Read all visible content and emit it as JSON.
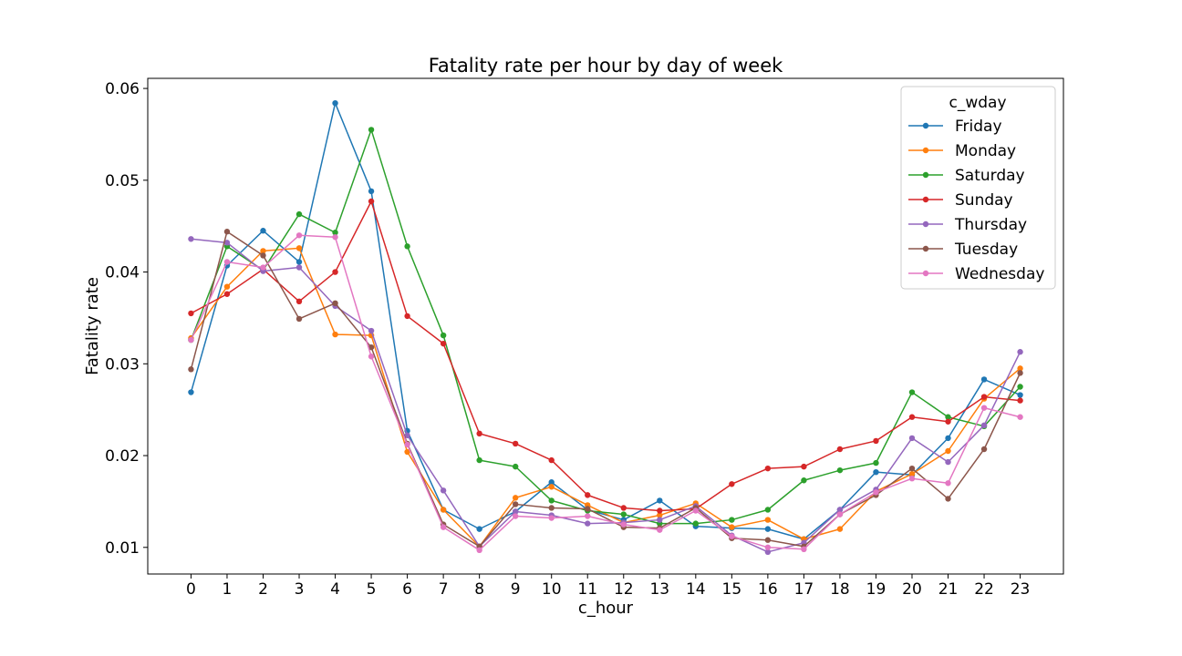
{
  "chart_data": {
    "type": "line",
    "title": "Fatality rate per hour by day of week",
    "xlabel": "c_hour",
    "ylabel": "Fatality rate",
    "x": [
      0,
      1,
      2,
      3,
      4,
      5,
      6,
      7,
      8,
      9,
      10,
      11,
      12,
      13,
      14,
      15,
      16,
      17,
      18,
      19,
      20,
      21,
      22,
      23
    ],
    "xlim": [
      -1.2,
      24.2
    ],
    "ylim": [
      0.0071,
      0.0611
    ],
    "yticks": [
      0.01,
      0.02,
      0.03,
      0.04,
      0.05,
      0.06
    ],
    "ytick_labels": [
      "0.01",
      "0.02",
      "0.03",
      "0.04",
      "0.05",
      "0.06"
    ],
    "xtick_labels": [
      "0",
      "1",
      "2",
      "3",
      "4",
      "5",
      "6",
      "7",
      "8",
      "9",
      "10",
      "11",
      "12",
      "13",
      "14",
      "15",
      "16",
      "17",
      "18",
      "19",
      "20",
      "21",
      "22",
      "23"
    ],
    "grid": false,
    "legend": {
      "title": "c_wday",
      "position": "top-right"
    },
    "series": [
      {
        "name": "Friday",
        "color": "#1f77b4",
        "values": [
          0.0269,
          0.0407,
          0.0445,
          0.0411,
          0.0584,
          0.0488,
          0.0227,
          0.0141,
          0.012,
          0.0139,
          0.0171,
          0.0141,
          0.013,
          0.0151,
          0.0123,
          0.0121,
          0.012,
          0.0109,
          0.0141,
          0.0182,
          0.0179,
          0.0219,
          0.0283,
          0.0266
        ]
      },
      {
        "name": "Monday",
        "color": "#ff7f0e",
        "values": [
          0.0328,
          0.0384,
          0.0423,
          0.0426,
          0.0332,
          0.0331,
          0.0204,
          0.0141,
          0.0101,
          0.0154,
          0.0166,
          0.0146,
          0.0127,
          0.0135,
          0.0148,
          0.0122,
          0.013,
          0.0109,
          0.012,
          0.0161,
          0.018,
          0.0205,
          0.0262,
          0.0295
        ]
      },
      {
        "name": "Saturday",
        "color": "#2ca02c",
        "values": [
          0.0326,
          0.0428,
          0.0402,
          0.0463,
          0.0443,
          0.0555,
          0.0428,
          0.0331,
          0.0195,
          0.0188,
          0.0151,
          0.014,
          0.0136,
          0.0126,
          0.0126,
          0.013,
          0.0141,
          0.0173,
          0.0184,
          0.0192,
          0.0269,
          0.0242,
          0.0232,
          0.0275
        ]
      },
      {
        "name": "Sunday",
        "color": "#d62728",
        "values": [
          0.0355,
          0.0376,
          0.0403,
          0.0368,
          0.04,
          0.0477,
          0.0352,
          0.0322,
          0.0224,
          0.0213,
          0.0195,
          0.0157,
          0.0143,
          0.014,
          0.0142,
          0.0169,
          0.0186,
          0.0188,
          0.0207,
          0.0216,
          0.0242,
          0.0237,
          0.0264,
          0.026
        ]
      },
      {
        "name": "Thursday",
        "color": "#9467bd",
        "values": [
          0.0436,
          0.0432,
          0.0401,
          0.0405,
          0.0363,
          0.0336,
          0.0222,
          0.0162,
          0.0101,
          0.0139,
          0.0135,
          0.0126,
          0.0127,
          0.013,
          0.0145,
          0.0113,
          0.0095,
          0.0105,
          0.0141,
          0.0163,
          0.0219,
          0.0193,
          0.0233,
          0.0313
        ]
      },
      {
        "name": "Tuesday",
        "color": "#8c564b",
        "values": [
          0.0294,
          0.0444,
          0.0418,
          0.0349,
          0.0366,
          0.0318,
          0.0213,
          0.0125,
          0.0101,
          0.0147,
          0.0143,
          0.0142,
          0.0122,
          0.0121,
          0.0143,
          0.011,
          0.0108,
          0.0101,
          0.0136,
          0.0157,
          0.0186,
          0.0153,
          0.0207,
          0.029
        ]
      },
      {
        "name": "Wednesday",
        "color": "#e377c2",
        "values": [
          0.0326,
          0.0411,
          0.0405,
          0.044,
          0.0438,
          0.0308,
          0.0212,
          0.0122,
          0.0097,
          0.0134,
          0.0132,
          0.0134,
          0.0125,
          0.0119,
          0.014,
          0.0112,
          0.01,
          0.0098,
          0.0136,
          0.016,
          0.0175,
          0.017,
          0.0252,
          0.0242
        ]
      }
    ]
  }
}
